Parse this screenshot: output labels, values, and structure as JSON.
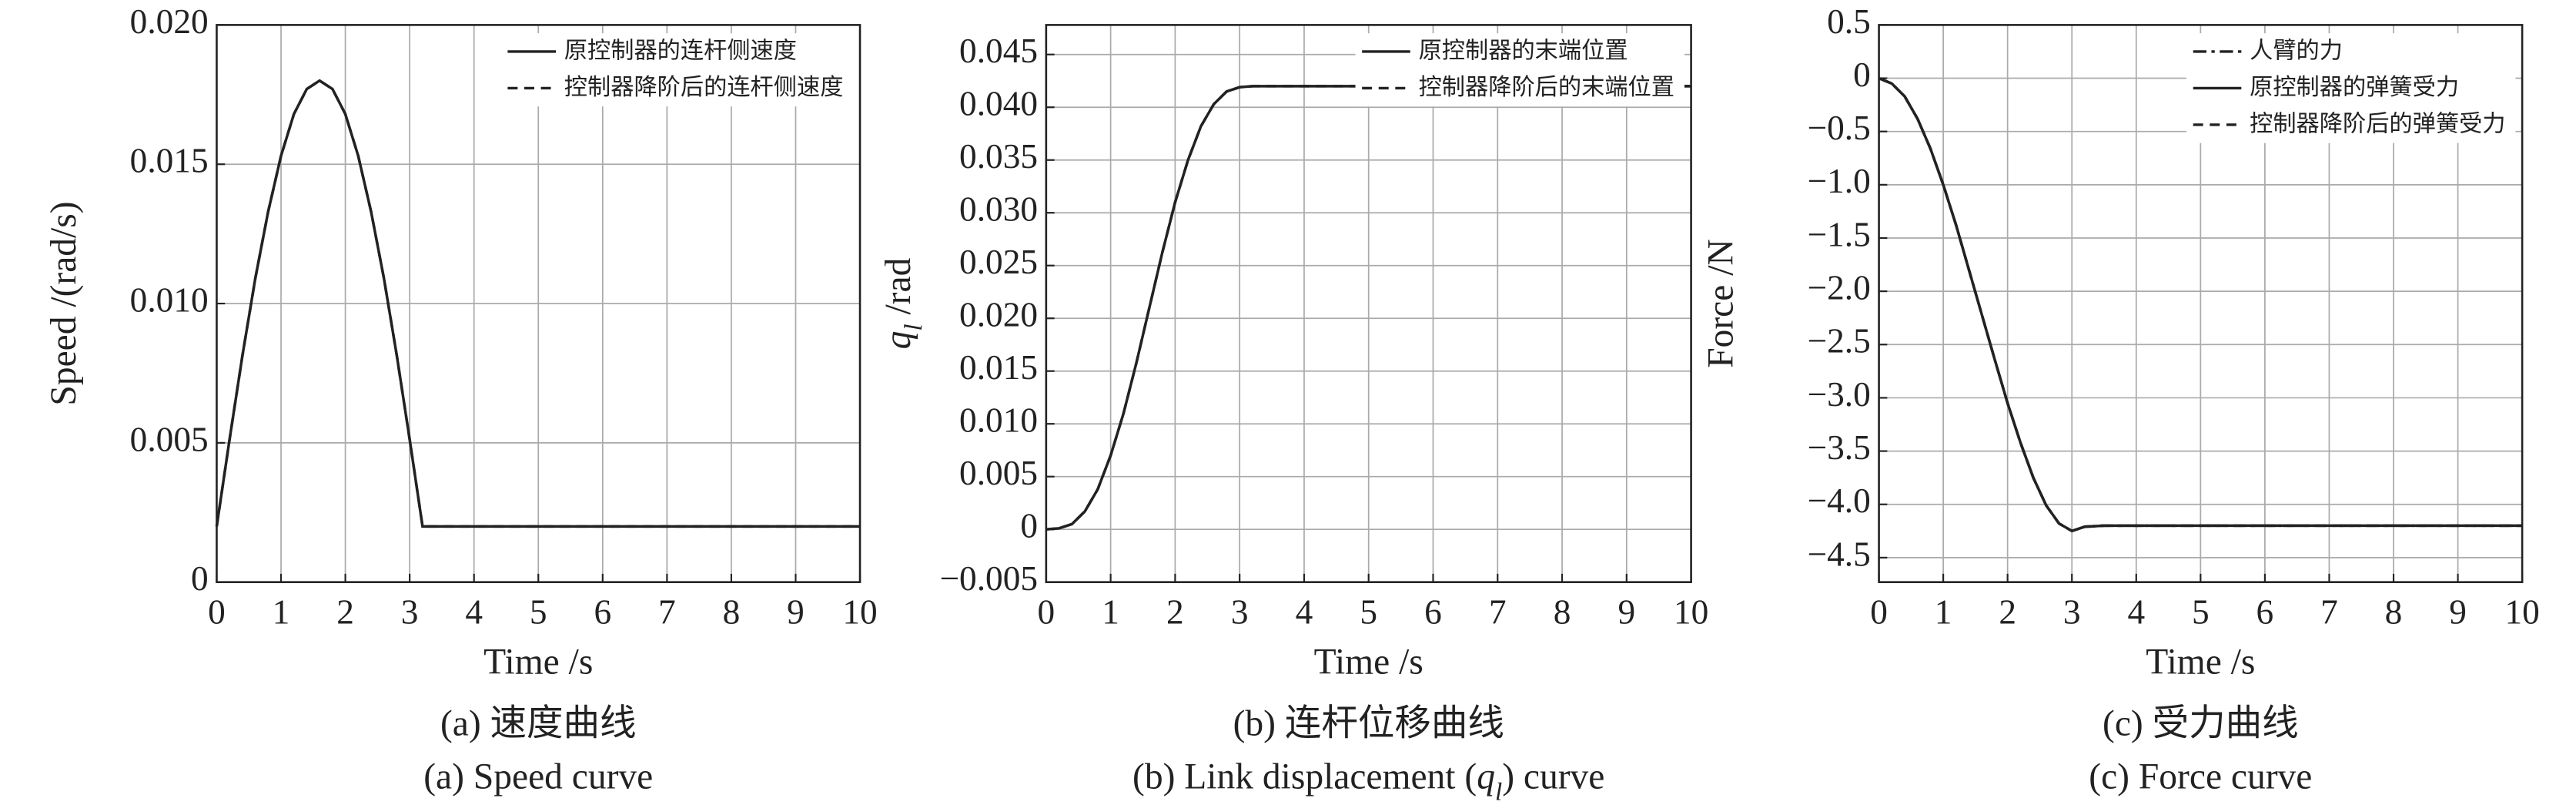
{
  "chart_data": [
    {
      "type": "line",
      "xlabel": "Time /s",
      "ylabel": "Speed /(rad/s)",
      "caption_zh": "(a) 速度曲线",
      "caption_en": "(a) Speed curve",
      "xlim": [
        0,
        10
      ],
      "xticks": [
        0,
        1,
        2,
        3,
        4,
        5,
        6,
        7,
        8,
        9,
        10
      ],
      "ylim": [
        0,
        0.02
      ],
      "yticks": [
        0,
        0.005,
        {
          "value": 0.01,
          "label": "0.010"
        },
        0.015,
        {
          "value": 0.02,
          "label": "0.020"
        }
      ],
      "grid": true,
      "legend_loc": "upper right",
      "x": [
        0,
        0.2,
        0.4,
        0.6,
        0.8,
        1.0,
        1.2,
        1.4,
        1.6,
        1.8,
        2.0,
        2.2,
        2.4,
        2.6,
        2.8,
        3.0,
        3.2,
        3.5,
        4,
        5,
        6,
        7,
        8,
        9,
        10
      ],
      "series": [
        {
          "name": "原控制器的连杆侧速度",
          "color": "#222222",
          "dash": "solid",
          "values": [
            0.002,
            0.00512,
            0.00813,
            0.0109,
            0.0133,
            0.0153,
            0.0168,
            0.0177,
            0.018,
            0.0177,
            0.0168,
            0.0153,
            0.0133,
            0.0109,
            0.00813,
            0.00512,
            0.002,
            0.002,
            0.002,
            0.002,
            0.002,
            0.002,
            0.002,
            0.002,
            0.002
          ]
        },
        {
          "name": "控制器降阶后的连杆侧速度",
          "color": "#222222",
          "dash": "dashed",
          "values": [
            0.002,
            0.00512,
            0.00813,
            0.0109,
            0.0133,
            0.0153,
            0.0168,
            0.0177,
            0.018,
            0.0177,
            0.0168,
            0.0153,
            0.0133,
            0.0109,
            0.00813,
            0.00512,
            0.002,
            0.002,
            0.002,
            0.002,
            0.002,
            0.002,
            0.002,
            0.002,
            0.002
          ]
        }
      ]
    },
    {
      "type": "line",
      "xlabel": "Time /s",
      "ylabel": [
        {
          "text": "q",
          "style": "italic"
        },
        {
          "text": "l",
          "style": "subscript"
        },
        {
          "text": " /rad"
        }
      ],
      "caption_zh": "(b) 连杆位移曲线",
      "caption_en": [
        {
          "text": "(b) Link displacement ("
        },
        {
          "text": "q",
          "style": "italic"
        },
        {
          "text": "l",
          "style": "subscript"
        },
        {
          "text": ") curve"
        }
      ],
      "xlim": [
        0,
        10
      ],
      "xticks": [
        0,
        1,
        2,
        3,
        4,
        5,
        6,
        7,
        8,
        9,
        10
      ],
      "ylim": [
        -0.005,
        0.0478
      ],
      "yticks": [
        {
          "value": -0.005,
          "label": "−0.005"
        },
        0,
        0.005,
        {
          "value": 0.01,
          "label": "0.010"
        },
        0.015,
        {
          "value": 0.02,
          "label": "0.020"
        },
        0.025,
        {
          "value": 0.03,
          "label": "0.030"
        },
        0.035,
        {
          "value": 0.04,
          "label": "0.040"
        },
        0.045
      ],
      "grid": true,
      "legend_loc": "upper right",
      "x": [
        0,
        0.2,
        0.4,
        0.6,
        0.8,
        1.0,
        1.2,
        1.4,
        1.6,
        1.8,
        2.0,
        2.2,
        2.4,
        2.6,
        2.8,
        3.0,
        3.2,
        3.5,
        4,
        5,
        6,
        7,
        8,
        9,
        10
      ],
      "series": [
        {
          "name": "原控制器的末端位置",
          "color": "#222222",
          "dash": "solid",
          "values": [
            0,
            0.0001,
            0.0005,
            0.0017,
            0.0038,
            0.007,
            0.011,
            0.0158,
            0.021,
            0.0262,
            0.031,
            0.035,
            0.0382,
            0.0403,
            0.0415,
            0.0419,
            0.042,
            0.042,
            0.042,
            0.042,
            0.042,
            0.042,
            0.042,
            0.042,
            0.042
          ]
        },
        {
          "name": "控制器降阶后的末端位置",
          "color": "#222222",
          "dash": "dashed",
          "values": [
            0,
            0.0001,
            0.0005,
            0.0017,
            0.0038,
            0.007,
            0.011,
            0.0158,
            0.021,
            0.0262,
            0.031,
            0.035,
            0.0382,
            0.0403,
            0.0415,
            0.0419,
            0.042,
            0.042,
            0.042,
            0.042,
            0.042,
            0.042,
            0.042,
            0.042,
            0.042
          ]
        }
      ]
    },
    {
      "type": "line",
      "xlabel": "Time /s",
      "ylabel": "Force /N",
      "caption_zh": "(c) 受力曲线",
      "caption_en": "(c) Force curve",
      "xlim": [
        0,
        10
      ],
      "xticks": [
        0,
        1,
        2,
        3,
        4,
        5,
        6,
        7,
        8,
        9,
        10
      ],
      "ylim": [
        -4.73,
        0.5
      ],
      "yticks": [
        0.5,
        0,
        {
          "value": -0.5,
          "label": "−0.5"
        },
        {
          "value": -1,
          "label": "−1.0"
        },
        {
          "value": -1.5,
          "label": "−1.5"
        },
        {
          "value": -2,
          "label": "−2.0"
        },
        {
          "value": -2.5,
          "label": "−2.5"
        },
        {
          "value": -3,
          "label": "−3.0"
        },
        {
          "value": -3.5,
          "label": "−3.5"
        },
        {
          "value": -4,
          "label": "−4.0"
        },
        {
          "value": -4.5,
          "label": "−4.5"
        }
      ],
      "grid": true,
      "legend_loc": "upper right",
      "x": [
        0,
        0.2,
        0.4,
        0.6,
        0.8,
        1.0,
        1.2,
        1.4,
        1.6,
        1.8,
        2.0,
        2.2,
        2.4,
        2.6,
        2.8,
        3.0,
        3.2,
        3.5,
        4,
        5,
        6,
        7,
        8,
        9,
        10
      ],
      "series": [
        {
          "name": "人臂的力",
          "color": "#222222",
          "dash": "dashdot",
          "values": [
            0,
            -0.05,
            -0.17,
            -0.38,
            -0.66,
            -1.0,
            -1.38,
            -1.8,
            -2.22,
            -2.64,
            -3.05,
            -3.42,
            -3.75,
            -4.01,
            -4.18,
            -4.25,
            -4.21,
            -4.2,
            -4.2,
            -4.2,
            -4.2,
            -4.2,
            -4.2,
            -4.2,
            -4.2
          ]
        },
        {
          "name": "原控制器的弹簧受力",
          "color": "#222222",
          "dash": "solid",
          "values": [
            0,
            -0.05,
            -0.17,
            -0.38,
            -0.66,
            -1.0,
            -1.38,
            -1.8,
            -2.22,
            -2.64,
            -3.05,
            -3.42,
            -3.75,
            -4.01,
            -4.18,
            -4.25,
            -4.21,
            -4.2,
            -4.2,
            -4.2,
            -4.2,
            -4.2,
            -4.2,
            -4.2,
            -4.2
          ]
        },
        {
          "name": "控制器降阶后的弹簧受力",
          "color": "#222222",
          "dash": "dashed",
          "values": [
            0,
            -0.05,
            -0.17,
            -0.38,
            -0.66,
            -1.0,
            -1.38,
            -1.8,
            -2.22,
            -2.64,
            -3.05,
            -3.42,
            -3.75,
            -4.01,
            -4.18,
            -4.25,
            -4.21,
            -4.2,
            -4.2,
            -4.2,
            -4.2,
            -4.2,
            -4.2,
            -4.2,
            -4.2
          ]
        }
      ]
    }
  ]
}
